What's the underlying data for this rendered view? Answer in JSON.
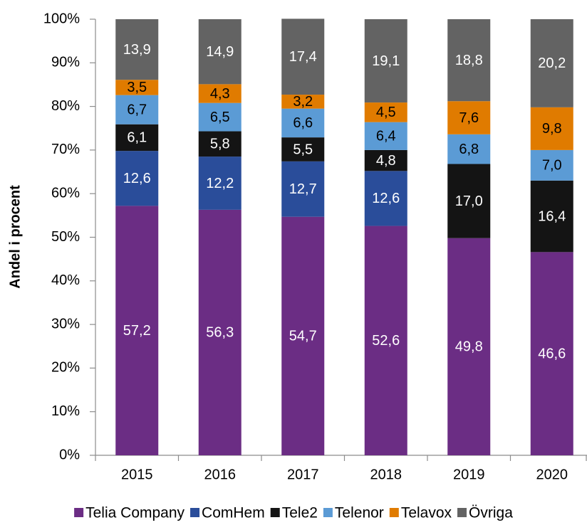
{
  "chart_data": {
    "type": "stacked_bar",
    "y_label": "Andel i procent",
    "categories": [
      "2015",
      "2016",
      "2017",
      "2018",
      "2019",
      "2020"
    ],
    "series": [
      {
        "name": "Telia Company",
        "color": "#6b2d84",
        "label_color": "#ffffff",
        "values": [
          57.2,
          56.3,
          54.7,
          52.6,
          49.8,
          46.6
        ],
        "value_labels": [
          "57,2",
          "56,3",
          "54,7",
          "52,6",
          "49,8",
          "46,6"
        ]
      },
      {
        "name": "ComHem",
        "color": "#2a4d9a",
        "label_color": "#ffffff",
        "values": [
          12.6,
          12.2,
          12.7,
          12.6,
          null,
          null
        ],
        "value_labels": [
          "12,6",
          "12,2",
          "12,7",
          "12,6",
          null,
          null
        ]
      },
      {
        "name": "Tele2",
        "color": "#141414",
        "label_color": "#ffffff",
        "values": [
          6.1,
          5.8,
          5.5,
          4.8,
          17.0,
          16.4
        ],
        "value_labels": [
          "6,1",
          "5,8",
          "5,5",
          "4,8",
          "17,0",
          "16,4"
        ]
      },
      {
        "name": "Telenor",
        "color": "#5b9bd5",
        "label_color": "#000000",
        "values": [
          6.7,
          6.5,
          6.6,
          6.4,
          6.8,
          7.0
        ],
        "value_labels": [
          "6,7",
          "6,5",
          "6,6",
          "6,4",
          "6,8",
          "7,0"
        ]
      },
      {
        "name": "Telavox",
        "color": "#e07b00",
        "label_color": "#000000",
        "values": [
          3.5,
          4.3,
          3.2,
          4.5,
          7.6,
          9.8
        ],
        "value_labels": [
          "3,5",
          "4,3",
          "3,2",
          "4,5",
          "7,6",
          "9,8"
        ]
      },
      {
        "name": "Övriga",
        "color": "#636363",
        "label_color": "#ffffff",
        "values": [
          13.9,
          14.9,
          17.4,
          19.1,
          18.8,
          20.2
        ],
        "value_labels": [
          "13,9",
          "14,9",
          "17,4",
          "19,1",
          "18,8",
          "20,2"
        ]
      }
    ],
    "ylim": [
      0,
      100
    ],
    "yticks": [
      {
        "value": 0,
        "label": "0%"
      },
      {
        "value": 10,
        "label": "10%"
      },
      {
        "value": 20,
        "label": "20%"
      },
      {
        "value": 30,
        "label": "30%"
      },
      {
        "value": 40,
        "label": "40%"
      },
      {
        "value": 50,
        "label": "50%"
      },
      {
        "value": 60,
        "label": "60%"
      },
      {
        "value": 70,
        "label": "70%"
      },
      {
        "value": 80,
        "label": "80%"
      },
      {
        "value": 90,
        "label": "90%"
      },
      {
        "value": 100,
        "label": "100%"
      }
    ],
    "grid": false,
    "legend": "bottom"
  }
}
